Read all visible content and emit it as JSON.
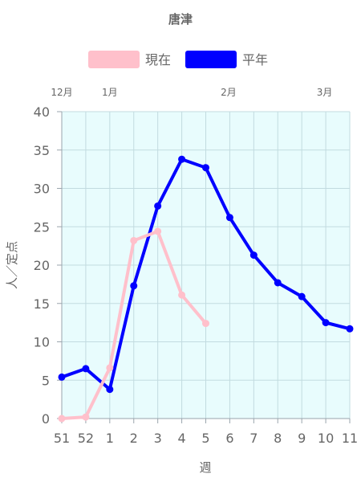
{
  "chart_data": {
    "type": "line",
    "title": "唐津",
    "xlabel": "週",
    "ylabel": "人／定点",
    "ylim": [
      0,
      40
    ],
    "yticks": [
      0,
      5,
      10,
      15,
      20,
      25,
      30,
      35,
      40
    ],
    "categories": [
      "51",
      "52",
      "1",
      "2",
      "3",
      "4",
      "5",
      "6",
      "7",
      "8",
      "9",
      "10",
      "11"
    ],
    "months": [
      {
        "label": "12月",
        "category": "51"
      },
      {
        "label": "1月",
        "category": "1"
      },
      {
        "label": "2月",
        "category": "5.95"
      },
      {
        "label": "3月",
        "category": "9.95"
      }
    ],
    "series": [
      {
        "name": "現在",
        "color": "#ffc0cb",
        "values": [
          0.0,
          0.2,
          6.6,
          23.2,
          24.4,
          16.1,
          12.4,
          null,
          null,
          null,
          null,
          null,
          null
        ]
      },
      {
        "name": "平年",
        "color": "#0000ff",
        "values": [
          5.4,
          6.5,
          3.8,
          17.3,
          27.7,
          33.8,
          32.7,
          26.2,
          21.3,
          17.7,
          15.9,
          12.5,
          11.7
        ]
      }
    ],
    "grid": true,
    "plot_background": "#e8fcfd",
    "legend_position": "top"
  }
}
